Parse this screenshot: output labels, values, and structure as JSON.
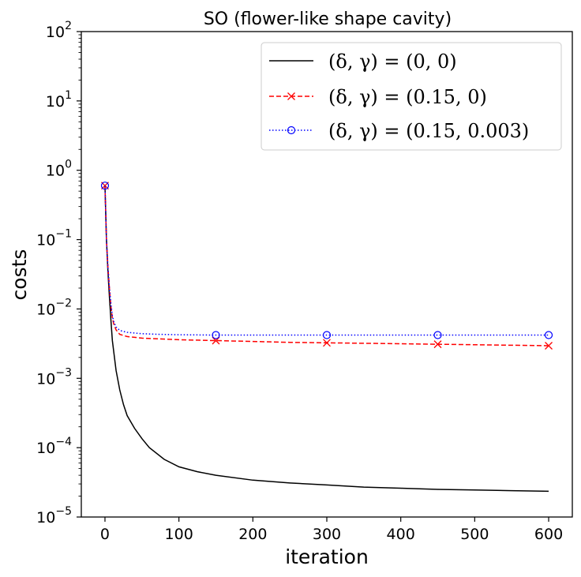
{
  "chart_data": {
    "type": "line",
    "title": "SO (flower-like shape cavity)",
    "xlabel": "iteration",
    "ylabel": "costs",
    "xlim": [
      -32,
      632
    ],
    "ylim": [
      1e-05,
      100
    ],
    "yscale": "log",
    "grid": false,
    "legend_placement": "top-right",
    "x_ticks": [
      0,
      100,
      200,
      300,
      400,
      500,
      600
    ],
    "x_tick_labels": [
      "0",
      "100",
      "200",
      "300",
      "400",
      "500",
      "600"
    ],
    "y_ticks": [
      1e-05,
      0.0001,
      0.001,
      0.01,
      0.1,
      1,
      10,
      100
    ],
    "y_tick_labels": [
      {
        "base": "10",
        "exp": "−5"
      },
      {
        "base": "10",
        "exp": "−4"
      },
      {
        "base": "10",
        "exp": "−3"
      },
      {
        "base": "10",
        "exp": "−2"
      },
      {
        "base": "10",
        "exp": "−1"
      },
      {
        "base": "10",
        "exp": "0"
      },
      {
        "base": "10",
        "exp": "1"
      },
      {
        "base": "10",
        "exp": "2"
      }
    ],
    "series": [
      {
        "name": "(δ, γ) = (0, 0)",
        "color": "#000000",
        "style": "solid",
        "marker": "none",
        "x": [
          0,
          2,
          4,
          6,
          8,
          10,
          15,
          20,
          25,
          30,
          40,
          50,
          60,
          80,
          100,
          125,
          150,
          200,
          250,
          300,
          350,
          400,
          450,
          500,
          550,
          600
        ],
        "y": [
          0.6,
          0.1,
          0.035,
          0.015,
          0.007,
          0.0035,
          0.0013,
          0.00068,
          0.00042,
          0.00029,
          0.00019,
          0.000135,
          0.0001,
          6.8e-05,
          5.3e-05,
          4.5e-05,
          4e-05,
          3.4e-05,
          3.1e-05,
          2.9e-05,
          2.7e-05,
          2.6e-05,
          2.5e-05,
          2.45e-05,
          2.4e-05,
          2.35e-05
        ]
      },
      {
        "name": "(δ, γ) = (0.15, 0)",
        "color": "#ff0000",
        "style": "dashed",
        "marker": "x",
        "x": [
          0,
          2,
          4,
          6,
          8,
          10,
          12,
          15,
          20,
          30,
          50,
          75,
          100,
          150,
          200,
          250,
          300,
          350,
          400,
          450,
          500,
          550,
          600
        ],
        "y": [
          0.6,
          0.1,
          0.04,
          0.02,
          0.011,
          0.0075,
          0.006,
          0.005,
          0.0043,
          0.004,
          0.0038,
          0.0037,
          0.0036,
          0.0035,
          0.0034,
          0.0033,
          0.00325,
          0.0032,
          0.00315,
          0.0031,
          0.00305,
          0.003,
          0.00295
        ],
        "marker_x": [
          0,
          150,
          300,
          450,
          600
        ],
        "marker_y": [
          0.6,
          0.0035,
          0.00325,
          0.0031,
          0.00295
        ]
      },
      {
        "name": "(δ, γ) = (0.15, 0.003)",
        "color": "#0000ff",
        "style": "dotted",
        "marker": "o",
        "x": [
          0,
          2,
          4,
          6,
          8,
          10,
          12,
          15,
          20,
          30,
          50,
          75,
          100,
          150,
          200,
          300,
          400,
          500,
          600
        ],
        "y": [
          0.6,
          0.1,
          0.04,
          0.02,
          0.012,
          0.008,
          0.0065,
          0.0055,
          0.0049,
          0.0046,
          0.0044,
          0.0043,
          0.00425,
          0.0042,
          0.0042,
          0.0042,
          0.0042,
          0.0042,
          0.0042
        ],
        "marker_x": [
          0,
          150,
          300,
          450,
          600
        ],
        "marker_y": [
          0.6,
          0.0042,
          0.0042,
          0.0042,
          0.0042
        ]
      }
    ],
    "legend": [
      {
        "label": "(δ, γ) = (0, 0)"
      },
      {
        "label": "(δ, γ) = (0.15, 0)"
      },
      {
        "label": "(δ, γ) = (0.15, 0.003)"
      }
    ]
  }
}
